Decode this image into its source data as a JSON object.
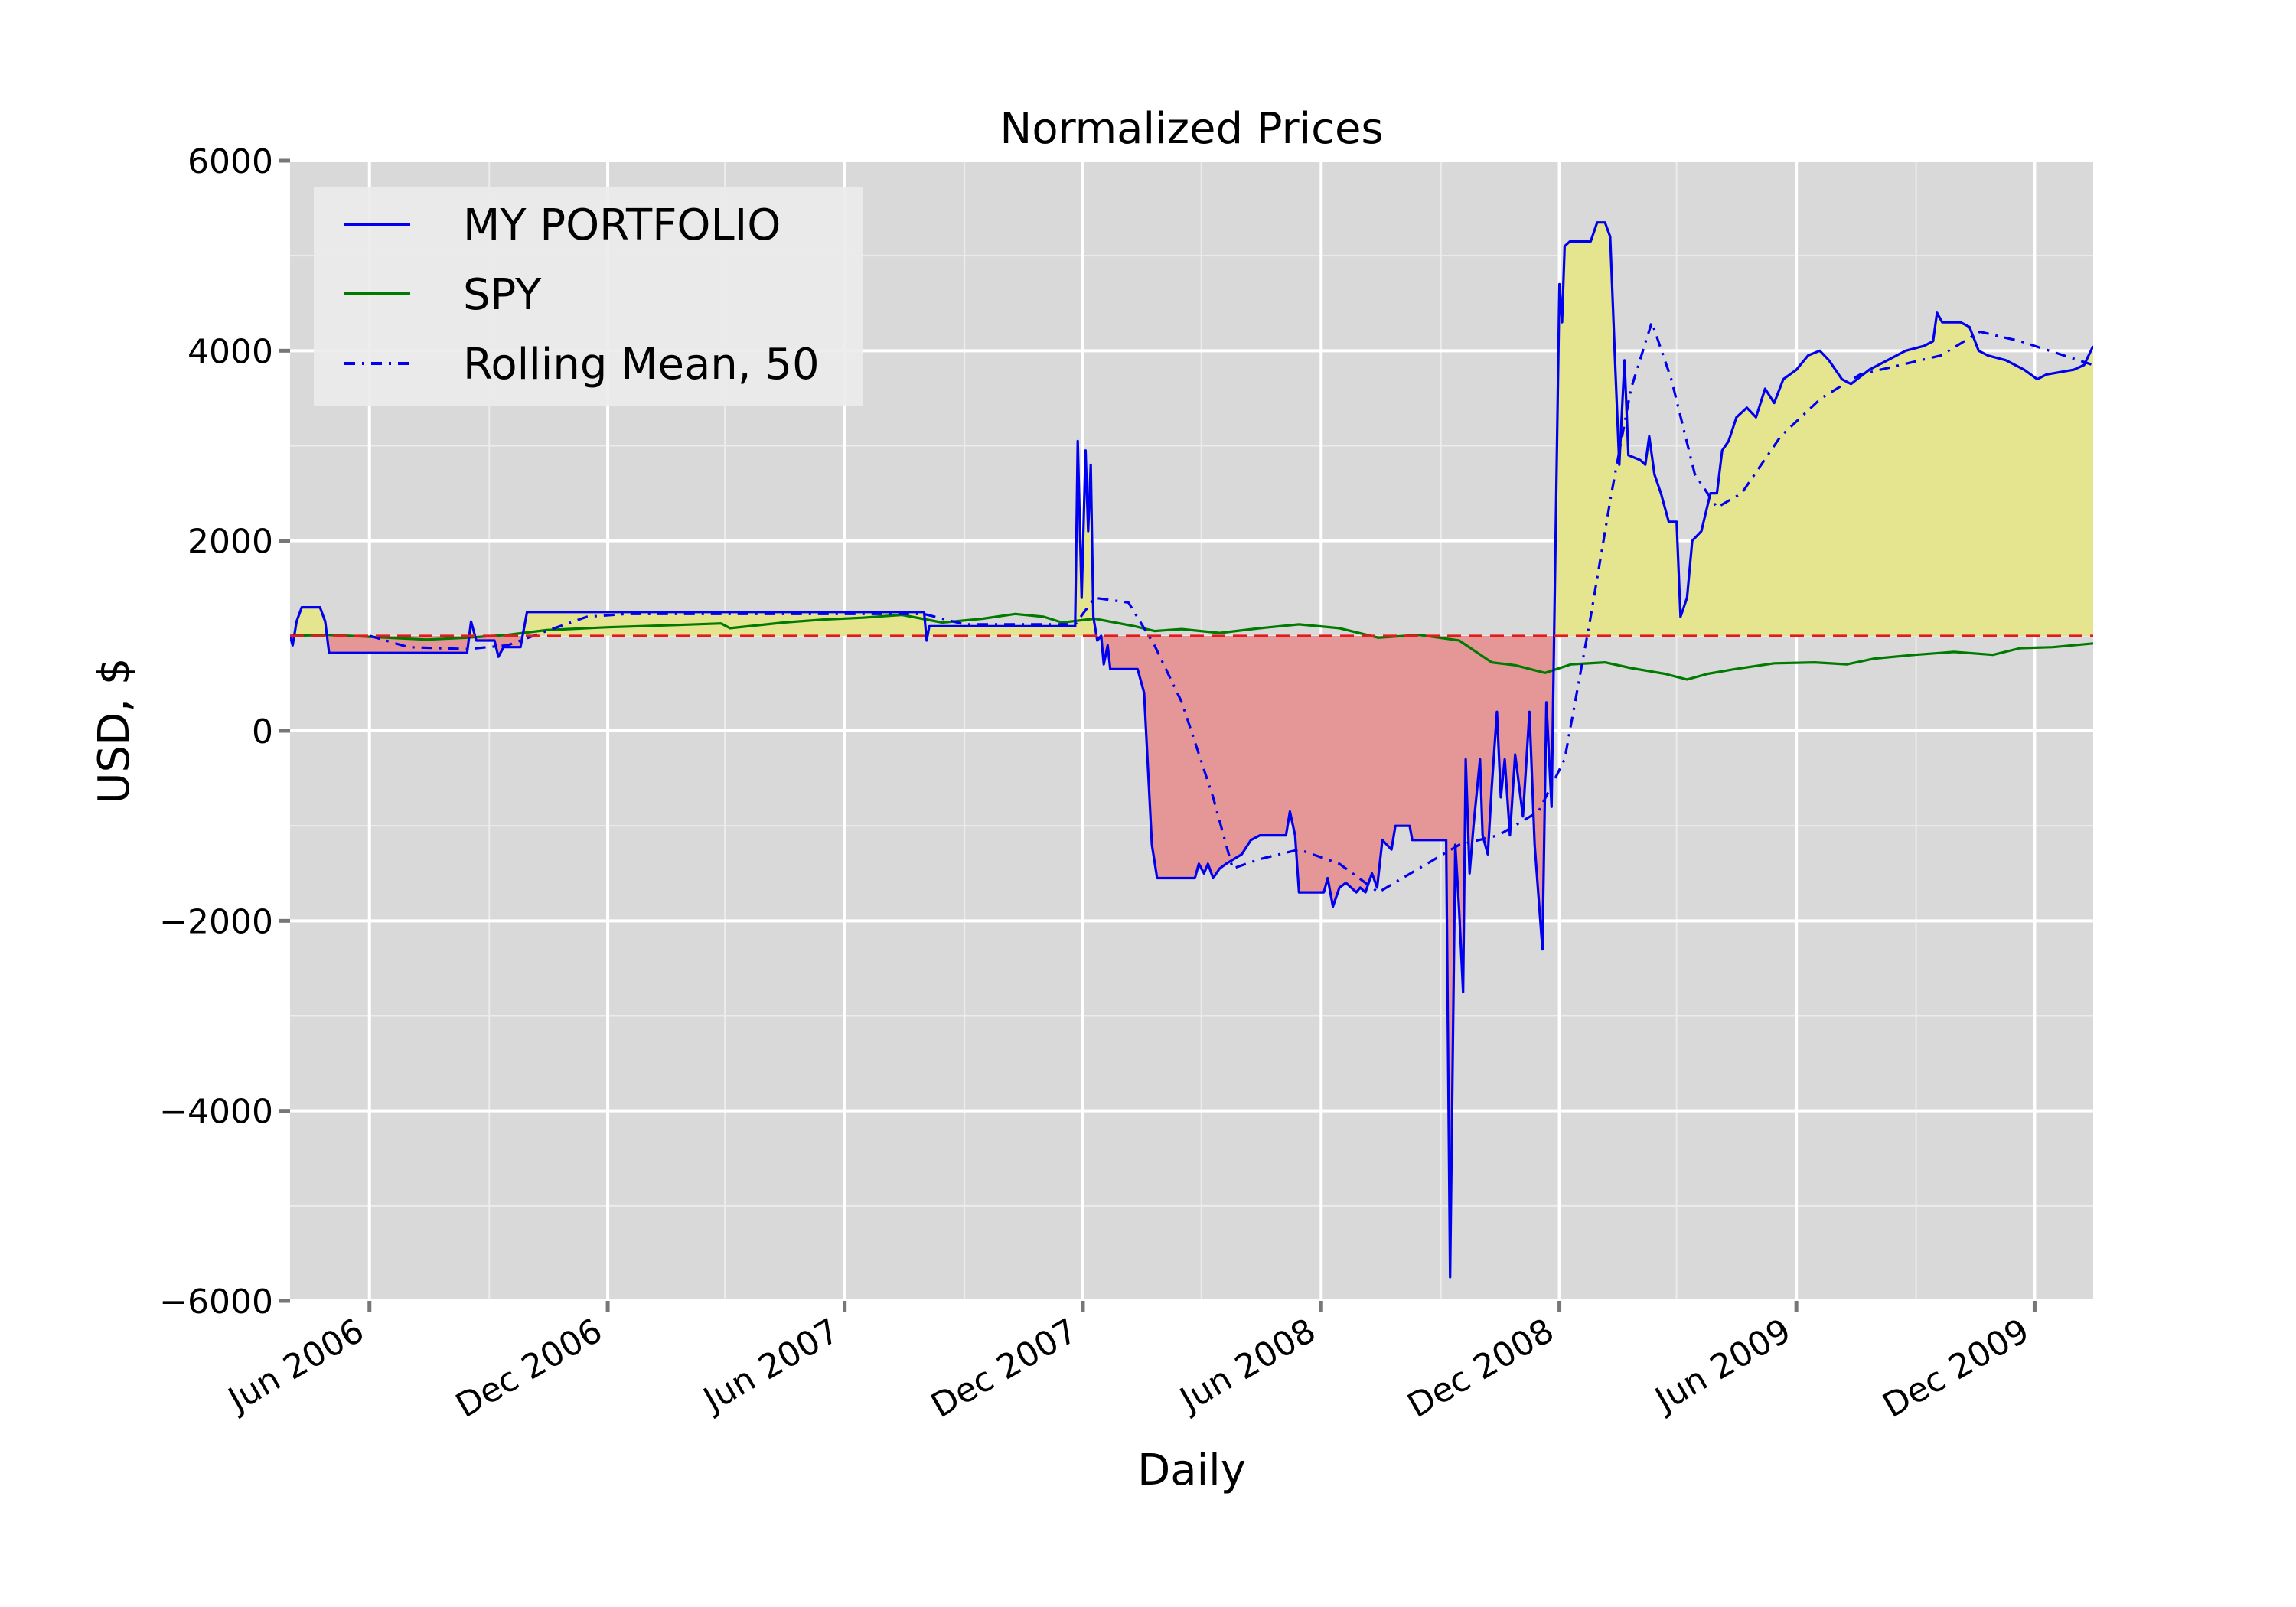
{
  "chart_data": {
    "type": "line",
    "title": "Normalized Prices",
    "xlabel": "Daily",
    "ylabel": "USD, $",
    "xlim": [
      "2006-04-01",
      "2010-01-15"
    ],
    "ylim": [
      -6000,
      6000
    ],
    "yticks": [
      -6000,
      -4000,
      -2000,
      0,
      2000,
      4000,
      6000
    ],
    "ytick_labels": [
      "−6000",
      "−4000",
      "−2000",
      "0",
      "2000",
      "4000",
      "6000"
    ],
    "xticks": [
      {
        "date": "2006-06-01",
        "label": "Jun 2006"
      },
      {
        "date": "2006-12-01",
        "label": "Dec 2006"
      },
      {
        "date": "2007-06-01",
        "label": "Jun 2007"
      },
      {
        "date": "2007-12-01",
        "label": "Dec 2007"
      },
      {
        "date": "2008-06-01",
        "label": "Jun 2008"
      },
      {
        "date": "2008-12-01",
        "label": "Dec 2008"
      },
      {
        "date": "2009-06-01",
        "label": "Jun 2009"
      },
      {
        "date": "2009-12-01",
        "label": "Dec 2009"
      }
    ],
    "reference_line": {
      "y": 1000,
      "style": "dashed",
      "color": "#e41a1c"
    },
    "fill_between": {
      "baseline": 1000,
      "above_color": "#e5e58f",
      "below_color": "#e59797",
      "series": "MY PORTFOLIO"
    },
    "grid": true,
    "legend_position": "top-left",
    "series": [
      {
        "name": "MY PORTFOLIO",
        "color": "#0000ee",
        "style": "solid",
        "points": [
          [
            "2006-04-01",
            1000
          ],
          [
            "2006-04-03",
            900
          ],
          [
            "2006-04-06",
            1150
          ],
          [
            "2006-04-10",
            1300
          ],
          [
            "2006-04-24",
            1300
          ],
          [
            "2006-04-28",
            1150
          ],
          [
            "2006-05-01",
            820
          ],
          [
            "2006-05-20",
            820
          ],
          [
            "2006-08-15",
            820
          ],
          [
            "2006-08-18",
            1150
          ],
          [
            "2006-08-22",
            950
          ],
          [
            "2006-09-05",
            950
          ],
          [
            "2006-09-08",
            780
          ],
          [
            "2006-09-12",
            880
          ],
          [
            "2006-09-25",
            880
          ],
          [
            "2006-09-30",
            1250
          ],
          [
            "2007-08-01",
            1250
          ],
          [
            "2007-08-03",
            950
          ],
          [
            "2007-08-05",
            1100
          ],
          [
            "2007-11-25",
            1100
          ],
          [
            "2007-11-27",
            3050
          ],
          [
            "2007-11-30",
            1400
          ],
          [
            "2007-12-03",
            2950
          ],
          [
            "2007-12-05",
            2100
          ],
          [
            "2007-12-07",
            2800
          ],
          [
            "2007-12-09",
            1200
          ],
          [
            "2007-12-12",
            950
          ],
          [
            "2007-12-15",
            1000
          ],
          [
            "2007-12-17",
            700
          ],
          [
            "2007-12-20",
            900
          ],
          [
            "2007-12-22",
            650
          ],
          [
            "2008-01-12",
            650
          ],
          [
            "2008-01-17",
            400
          ],
          [
            "2008-01-23",
            -1200
          ],
          [
            "2008-01-27",
            -1550
          ],
          [
            "2008-02-25",
            -1550
          ],
          [
            "2008-02-28",
            -1400
          ],
          [
            "2008-03-03",
            -1500
          ],
          [
            "2008-03-06",
            -1400
          ],
          [
            "2008-03-10",
            -1550
          ],
          [
            "2008-03-15",
            -1450
          ],
          [
            "2008-03-20",
            -1400
          ],
          [
            "2008-04-01",
            -1300
          ],
          [
            "2008-04-08",
            -1150
          ],
          [
            "2008-04-15",
            -1100
          ],
          [
            "2008-05-05",
            -1100
          ],
          [
            "2008-05-08",
            -850
          ],
          [
            "2008-05-12",
            -1100
          ],
          [
            "2008-05-15",
            -1700
          ],
          [
            "2008-06-03",
            -1700
          ],
          [
            "2008-06-06",
            -1550
          ],
          [
            "2008-06-10",
            -1850
          ],
          [
            "2008-06-15",
            -1650
          ],
          [
            "2008-06-20",
            -1600
          ],
          [
            "2008-06-28",
            -1700
          ],
          [
            "2008-07-01",
            -1650
          ],
          [
            "2008-07-05",
            -1700
          ],
          [
            "2008-07-10",
            -1500
          ],
          [
            "2008-07-14",
            -1650
          ],
          [
            "2008-07-18",
            -1150
          ],
          [
            "2008-07-25",
            -1250
          ],
          [
            "2008-07-28",
            -1000
          ],
          [
            "2008-08-08",
            -1000
          ],
          [
            "2008-08-10",
            -1150
          ],
          [
            "2008-09-05",
            -1150
          ],
          [
            "2008-09-08",
            -5750
          ],
          [
            "2008-09-12",
            -1200
          ],
          [
            "2008-09-15",
            -1900
          ],
          [
            "2008-09-18",
            -2750
          ],
          [
            "2008-09-20",
            -300
          ],
          [
            "2008-09-23",
            -1500
          ],
          [
            "2008-09-26",
            -1000
          ],
          [
            "2008-10-01",
            -300
          ],
          [
            "2008-10-03",
            -1100
          ],
          [
            "2008-10-07",
            -1300
          ],
          [
            "2008-10-10",
            -600
          ],
          [
            "2008-10-14",
            200
          ],
          [
            "2008-10-17",
            -700
          ],
          [
            "2008-10-20",
            -300
          ],
          [
            "2008-10-24",
            -1100
          ],
          [
            "2008-10-28",
            -250
          ],
          [
            "2008-11-03",
            -900
          ],
          [
            "2008-11-08",
            200
          ],
          [
            "2008-11-12",
            -1200
          ],
          [
            "2008-11-18",
            -2300
          ],
          [
            "2008-11-21",
            300
          ],
          [
            "2008-11-25",
            -800
          ],
          [
            "2008-11-28",
            2000
          ],
          [
            "2008-12-01",
            4700
          ],
          [
            "2008-12-03",
            4300
          ],
          [
            "2008-12-05",
            5100
          ],
          [
            "2008-12-09",
            5150
          ],
          [
            "2008-12-25",
            5150
          ],
          [
            "2008-12-30",
            5350
          ],
          [
            "2009-01-05",
            5350
          ],
          [
            "2009-01-09",
            5200
          ],
          [
            "2009-01-13",
            3800
          ],
          [
            "2009-01-16",
            2800
          ],
          [
            "2009-01-20",
            3900
          ],
          [
            "2009-01-23",
            2900
          ],
          [
            "2009-02-01",
            2850
          ],
          [
            "2009-02-05",
            2800
          ],
          [
            "2009-02-08",
            3100
          ],
          [
            "2009-02-12",
            2700
          ],
          [
            "2009-02-17",
            2500
          ],
          [
            "2009-02-23",
            2200
          ],
          [
            "2009-03-01",
            2200
          ],
          [
            "2009-03-04",
            1200
          ],
          [
            "2009-03-09",
            1400
          ],
          [
            "2009-03-13",
            2000
          ],
          [
            "2009-03-20",
            2100
          ],
          [
            "2009-03-27",
            2500
          ],
          [
            "2009-04-01",
            2500
          ],
          [
            "2009-04-05",
            2950
          ],
          [
            "2009-04-10",
            3050
          ],
          [
            "2009-04-16",
            3300
          ],
          [
            "2009-04-24",
            3400
          ],
          [
            "2009-05-01",
            3300
          ],
          [
            "2009-05-08",
            3600
          ],
          [
            "2009-05-15",
            3450
          ],
          [
            "2009-05-22",
            3700
          ],
          [
            "2009-06-01",
            3800
          ],
          [
            "2009-06-10",
            3950
          ],
          [
            "2009-06-19",
            4000
          ],
          [
            "2009-06-26",
            3900
          ],
          [
            "2009-07-06",
            3700
          ],
          [
            "2009-07-13",
            3650
          ],
          [
            "2009-07-27",
            3800
          ],
          [
            "2009-08-10",
            3900
          ],
          [
            "2009-08-24",
            4000
          ],
          [
            "2009-09-07",
            4050
          ],
          [
            "2009-09-14",
            4100
          ],
          [
            "2009-09-17",
            4400
          ],
          [
            "2009-09-21",
            4300
          ],
          [
            "2009-10-05",
            4300
          ],
          [
            "2009-10-12",
            4250
          ],
          [
            "2009-10-19",
            4000
          ],
          [
            "2009-10-26",
            3950
          ],
          [
            "2009-11-09",
            3900
          ],
          [
            "2009-11-23",
            3800
          ],
          [
            "2009-12-03",
            3700
          ],
          [
            "2009-12-10",
            3750
          ],
          [
            "2009-12-31",
            3800
          ],
          [
            "2010-01-08",
            3850
          ],
          [
            "2010-01-15",
            4050
          ]
        ]
      },
      {
        "name": "SPY",
        "color": "#007a00",
        "style": "solid",
        "points": [
          [
            "2006-04-01",
            1000
          ],
          [
            "2006-05-01",
            1010
          ],
          [
            "2006-06-01",
            990
          ],
          [
            "2006-07-15",
            960
          ],
          [
            "2006-08-15",
            980
          ],
          [
            "2006-09-15",
            1010
          ],
          [
            "2006-10-15",
            1060
          ],
          [
            "2006-12-01",
            1090
          ],
          [
            "2007-01-15",
            1110
          ],
          [
            "2007-02-26",
            1130
          ],
          [
            "2007-03-05",
            1080
          ],
          [
            "2007-04-15",
            1140
          ],
          [
            "2007-05-15",
            1170
          ],
          [
            "2007-06-15",
            1190
          ],
          [
            "2007-07-15",
            1220
          ],
          [
            "2007-08-15",
            1140
          ],
          [
            "2007-09-15",
            1180
          ],
          [
            "2007-10-10",
            1230
          ],
          [
            "2007-11-01",
            1200
          ],
          [
            "2007-11-15",
            1140
          ],
          [
            "2007-12-10",
            1180
          ],
          [
            "2008-01-10",
            1100
          ],
          [
            "2008-01-25",
            1050
          ],
          [
            "2008-02-15",
            1070
          ],
          [
            "2008-03-15",
            1030
          ],
          [
            "2008-04-15",
            1080
          ],
          [
            "2008-05-15",
            1120
          ],
          [
            "2008-06-15",
            1080
          ],
          [
            "2008-07-15",
            980
          ],
          [
            "2008-08-15",
            1010
          ],
          [
            "2008-09-15",
            950
          ],
          [
            "2008-10-10",
            720
          ],
          [
            "2008-10-28",
            690
          ],
          [
            "2008-11-20",
            610
          ],
          [
            "2008-12-10",
            700
          ],
          [
            "2009-01-05",
            720
          ],
          [
            "2009-01-25",
            660
          ],
          [
            "2009-02-20",
            600
          ],
          [
            "2009-03-09",
            540
          ],
          [
            "2009-03-25",
            600
          ],
          [
            "2009-04-15",
            650
          ],
          [
            "2009-05-15",
            710
          ],
          [
            "2009-06-15",
            720
          ],
          [
            "2009-07-10",
            700
          ],
          [
            "2009-07-31",
            760
          ],
          [
            "2009-08-31",
            800
          ],
          [
            "2009-09-30",
            830
          ],
          [
            "2009-10-30",
            800
          ],
          [
            "2009-11-20",
            870
          ],
          [
            "2009-12-15",
            880
          ],
          [
            "2010-01-15",
            920
          ]
        ]
      },
      {
        "name": "Rolling Mean, 50",
        "color": "#0000ee",
        "style": "dashdot",
        "points": [
          [
            "2006-06-01",
            1000
          ],
          [
            "2006-07-01",
            880
          ],
          [
            "2006-08-15",
            860
          ],
          [
            "2006-09-15",
            900
          ],
          [
            "2006-10-15",
            1050
          ],
          [
            "2006-11-15",
            1200
          ],
          [
            "2006-12-15",
            1230
          ],
          [
            "2007-08-01",
            1230
          ],
          [
            "2007-09-01",
            1120
          ],
          [
            "2007-11-25",
            1120
          ],
          [
            "2007-12-10",
            1400
          ],
          [
            "2008-01-05",
            1350
          ],
          [
            "2008-01-25",
            900
          ],
          [
            "2008-02-15",
            300
          ],
          [
            "2008-03-10",
            -700
          ],
          [
            "2008-03-25",
            -1450
          ],
          [
            "2008-04-15",
            -1350
          ],
          [
            "2008-05-15",
            -1250
          ],
          [
            "2008-06-15",
            -1400
          ],
          [
            "2008-07-15",
            -1700
          ],
          [
            "2008-08-15",
            -1450
          ],
          [
            "2008-09-15",
            -1200
          ],
          [
            "2008-10-15",
            -1100
          ],
          [
            "2008-11-15",
            -850
          ],
          [
            "2008-12-05",
            -300
          ],
          [
            "2008-12-25",
            1200
          ],
          [
            "2009-01-10",
            2500
          ],
          [
            "2009-01-25",
            3600
          ],
          [
            "2009-02-10",
            4300
          ],
          [
            "2009-02-25",
            3700
          ],
          [
            "2009-03-15",
            2700
          ],
          [
            "2009-04-01",
            2350
          ],
          [
            "2009-04-20",
            2500
          ],
          [
            "2009-05-20",
            3100
          ],
          [
            "2009-06-20",
            3500
          ],
          [
            "2009-07-20",
            3750
          ],
          [
            "2009-08-20",
            3850
          ],
          [
            "2009-09-20",
            3950
          ],
          [
            "2009-10-20",
            4200
          ],
          [
            "2009-11-20",
            4100
          ],
          [
            "2010-01-15",
            3850
          ]
        ]
      }
    ]
  }
}
